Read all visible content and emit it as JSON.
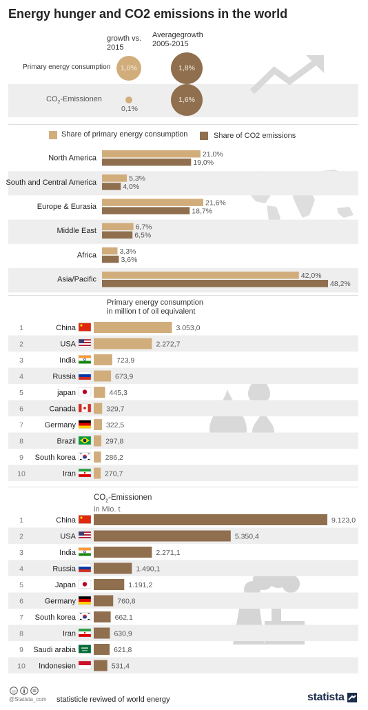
{
  "title": "Energy hunger and CO2 emissions in the world",
  "colors": {
    "energy": "#d2ad7c",
    "co2": "#8f6f4e",
    "band": "#eeeeee",
    "watermark": "#d9d9d9"
  },
  "growth": {
    "col1_header": "growth vs. 2015",
    "col2_header": "Averagegrowth 2005-2015",
    "rows": [
      {
        "label": "Primary energy consumption",
        "growth": "1,0%",
        "avg": "1,8%",
        "growth_value": 1.0,
        "avg_value": 1.8
      },
      {
        "label": "CO2-Emissionen",
        "label_pre": "CO",
        "label_sub": "2",
        "label_post": "-Emissionen",
        "growth": "0,1%",
        "avg": "1,6%",
        "growth_value": 0.1,
        "avg_value": 1.6
      }
    ]
  },
  "chart_data": [
    {
      "type": "bar",
      "orientation": "horizontal",
      "categories": [
        "North America",
        "South and Central America",
        "Europe & Eurasia",
        "Middle East",
        "Africa",
        "Asia/Pacific"
      ],
      "series": [
        {
          "name": "Share of primary energy consumption",
          "values": [
            21.0,
            5.3,
            21.6,
            6.7,
            3.3,
            42.0
          ],
          "labels": [
            "21,0%",
            "5,3%",
            "21,6%",
            "6,7%",
            "3,3%",
            "42,0%"
          ]
        },
        {
          "name": "Share of CO2 emissions",
          "values": [
            19.0,
            4.0,
            18.7,
            6.5,
            3.6,
            48.2
          ],
          "labels": [
            "19,0%",
            "4,0%",
            "18,7%",
            "6,5%",
            "3,6%",
            "48,2%"
          ]
        }
      ],
      "xlim": [
        0,
        48.2
      ],
      "legend": "top"
    },
    {
      "type": "bar",
      "orientation": "horizontal",
      "title": "Primary energy consumption in million t of oil equivalent",
      "title_lines": [
        "Primary energy consumption",
        "in million t of oil equivalent"
      ],
      "ranks": [
        "1",
        "2",
        "3",
        "4",
        "5",
        "6",
        "7",
        "8",
        "9",
        "10"
      ],
      "categories": [
        "China",
        "USA",
        "India",
        "Russia",
        "japan",
        "Canada",
        "Germany",
        "Brazil",
        "South korea",
        "Iran"
      ],
      "flags": [
        "cn",
        "us",
        "in",
        "ru",
        "jp",
        "ca",
        "de",
        "br",
        "kr",
        "ir"
      ],
      "values": [
        3053.0,
        2272.7,
        723.9,
        673.9,
        445.3,
        329.7,
        322.5,
        297.8,
        286.2,
        270.7
      ],
      "labels": [
        "3.053,0",
        "2.272,7",
        "723,9",
        "673,9",
        "445,3",
        "329,7",
        "322,5",
        "297,8",
        "286,2",
        "270,7"
      ],
      "xlim": [
        0,
        9123.0
      ]
    },
    {
      "type": "bar",
      "orientation": "horizontal",
      "title": "CO2-Emissionen in Mio. t",
      "title_pre": "CO",
      "title_sub": "2",
      "title_post": "-Emissionen",
      "title_line2": "in Mio. t",
      "ranks": [
        "1",
        "2",
        "3",
        "4",
        "5",
        "6",
        "7",
        "8",
        "9",
        "10"
      ],
      "categories": [
        "China",
        "USA",
        "India",
        "Russia",
        "Japan",
        "Germany",
        "South korea",
        "Iran",
        "Saudi arabia",
        "Indonesien"
      ],
      "flags": [
        "cn",
        "us",
        "in",
        "ru",
        "jp",
        "de",
        "kr",
        "ir",
        "sa",
        "id"
      ],
      "values": [
        9123.0,
        5350.4,
        2271.1,
        1490.1,
        1191.2,
        760.8,
        662.1,
        630.9,
        621.8,
        531.4
      ],
      "labels": [
        "9.123,0",
        "5.350,4",
        "2.271,1",
        "1.490,1",
        "1.191,2",
        "760,8",
        "662,1",
        "630,9",
        "621,8",
        "531,4"
      ],
      "xlim": [
        0,
        9123.0
      ]
    }
  ],
  "footer": {
    "license_icons": [
      "cc-icon",
      "by-icon",
      "equals-icon"
    ],
    "credit": "@Statista_com",
    "source": "statisticle reviwed of world energy",
    "brand": "statista"
  }
}
